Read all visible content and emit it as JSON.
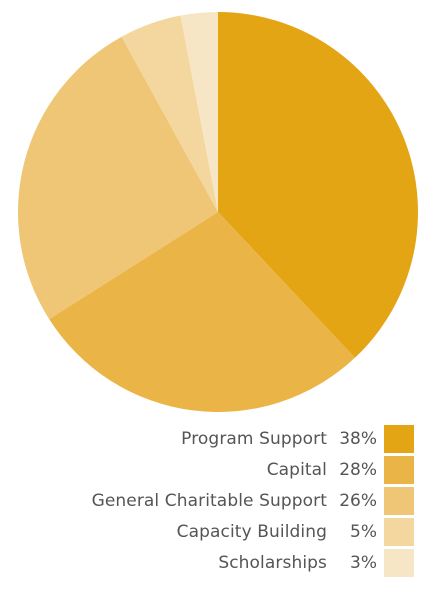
{
  "chart_data": {
    "type": "pie",
    "slices": [
      {
        "label": "Program Support",
        "value": 38,
        "value_label": "38%",
        "color": "#E3A514"
      },
      {
        "label": "Capital",
        "value": 28,
        "value_label": "28%",
        "color": "#EBB447"
      },
      {
        "label": "General Charitable Support",
        "value": 26,
        "value_label": "26%",
        "color": "#EFC676"
      },
      {
        "label": "Capacity Building",
        "value": 5,
        "value_label": "5%",
        "color": "#F3D79F"
      },
      {
        "label": "Scholarships",
        "value": 3,
        "value_label": "3%",
        "color": "#F7E6C6"
      }
    ],
    "legend_position": "bottom-right",
    "start_angle": "12 o'clock",
    "direction": "clockwise"
  }
}
